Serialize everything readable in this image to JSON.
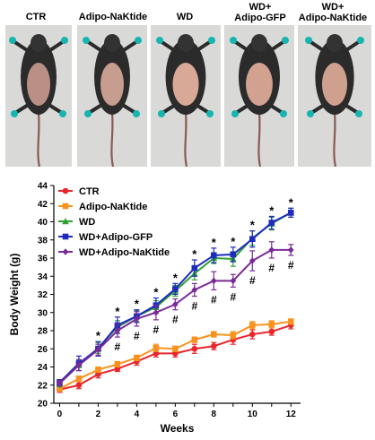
{
  "photo_panel": {
    "labels": [
      "CTR",
      "Adipo-NaKtide",
      "WD",
      "WD+\nAdipo-GFP",
      "WD+\nAdipo-NaKtide"
    ]
  },
  "chart_data": {
    "type": "line",
    "x": [
      0,
      1,
      2,
      3,
      4,
      5,
      6,
      7,
      8,
      9,
      10,
      11,
      12
    ],
    "xlabel": "Weeks",
    "ylabel": "Body Weight (g)",
    "xlim": [
      -0.3,
      12.5
    ],
    "ylim": [
      20,
      44
    ],
    "xticks": [
      0,
      2,
      4,
      6,
      8,
      10,
      12
    ],
    "yticks": [
      20,
      22,
      24,
      26,
      28,
      30,
      32,
      34,
      36,
      38,
      40,
      42,
      44
    ],
    "legend": "top-left",
    "series": [
      {
        "name": "CTR",
        "color": "#e8262b",
        "marker": "circle",
        "values": [
          21.5,
          22.0,
          23.2,
          23.8,
          24.6,
          25.5,
          25.5,
          26.0,
          26.3,
          27.0,
          27.6,
          27.9,
          28.6
        ],
        "errors": [
          0.3,
          0.4,
          0.4,
          0.3,
          0.4,
          0.4,
          0.4,
          0.5,
          0.4,
          0.5,
          0.5,
          0.4,
          0.4
        ]
      },
      {
        "name": "Adipo-NaKtide",
        "color": "#f7931e",
        "marker": "square",
        "values": [
          21.6,
          22.7,
          23.7,
          24.3,
          25.0,
          26.1,
          26.0,
          27.0,
          27.6,
          27.5,
          28.6,
          28.7,
          29.0
        ],
        "errors": [
          0.3,
          0.3,
          0.3,
          0.3,
          0.3,
          0.4,
          0.3,
          0.3,
          0.3,
          0.4,
          0.4,
          0.4,
          0.3
        ]
      },
      {
        "name": "WD",
        "color": "#2fa033",
        "marker": "triangle",
        "values": [
          22.2,
          24.2,
          26.1,
          28.4,
          29.6,
          30.6,
          32.4,
          34.3,
          36.0,
          35.9,
          38.2,
          39.8,
          41.0
        ],
        "errors": [
          0.4,
          0.6,
          0.6,
          0.7,
          0.6,
          0.7,
          0.6,
          0.7,
          0.6,
          0.8,
          0.8,
          0.7,
          0.5
        ]
      },
      {
        "name": "WD+Adipo-GFP",
        "color": "#1f2bbd",
        "marker": "square",
        "values": [
          22.3,
          24.4,
          26.0,
          28.6,
          29.6,
          30.8,
          32.6,
          34.9,
          36.3,
          36.4,
          38.1,
          39.9,
          41.0
        ],
        "errors": [
          0.3,
          0.8,
          0.8,
          0.9,
          0.7,
          0.8,
          0.6,
          0.9,
          0.8,
          0.8,
          0.9,
          0.7,
          0.5
        ]
      },
      {
        "name": "WD+Adipo-NaKtide",
        "color": "#7a2a97",
        "marker": "diamond",
        "values": [
          22.2,
          24.2,
          25.9,
          28.0,
          29.3,
          30.0,
          30.9,
          32.5,
          33.5,
          33.5,
          35.7,
          36.9,
          36.9
        ],
        "errors": [
          0.3,
          0.6,
          0.6,
          0.7,
          0.8,
          0.8,
          0.6,
          0.7,
          1.0,
          0.7,
          1.1,
          0.9,
          0.6
        ]
      }
    ],
    "annotations": {
      "star_symbol": "*",
      "hash_symbol": "#",
      "star_weeks": [
        2,
        3,
        4,
        5,
        6,
        7,
        8,
        9,
        10,
        11,
        12
      ],
      "hash_weeks": [
        3,
        4,
        5,
        6,
        7,
        8,
        9,
        10,
        11,
        12
      ]
    }
  }
}
